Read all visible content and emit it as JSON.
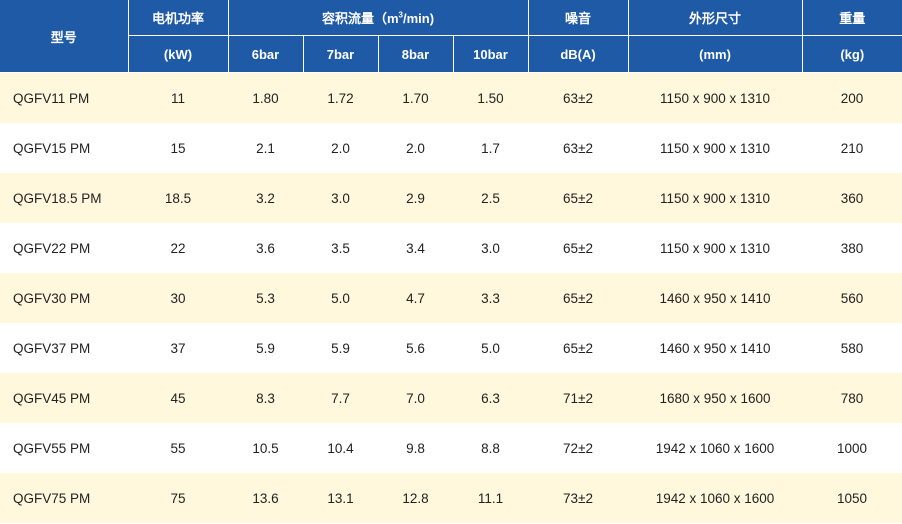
{
  "table": {
    "header": {
      "model": "型号",
      "power": "电机功率",
      "power_unit": "(kW)",
      "flow_prefix": "容积流量（m",
      "flow_sup": "3",
      "flow_suffix": "/min)",
      "pressures": [
        "6bar",
        "7bar",
        "8bar",
        "10bar"
      ],
      "noise": "噪音",
      "noise_unit": "dB(A)",
      "dimensions": "外形尺寸",
      "dimensions_unit": "(mm)",
      "weight": "重量",
      "weight_unit": "(kg)"
    },
    "rows": [
      {
        "model": "QGFV11 PM",
        "power": "11",
        "flow": [
          "1.80",
          "1.72",
          "1.70",
          "1.50"
        ],
        "noise": "63±2",
        "dimensions": "1150 x 900 x 1310",
        "weight": "200"
      },
      {
        "model": "QGFV15 PM",
        "power": "15",
        "flow": [
          "2.1",
          "2.0",
          "2.0",
          "1.7"
        ],
        "noise": "63±2",
        "dimensions": "1150 x 900 x 1310",
        "weight": "210"
      },
      {
        "model": "QGFV18.5 PM",
        "power": "18.5",
        "flow": [
          "3.2",
          "3.0",
          "2.9",
          "2.5"
        ],
        "noise": "65±2",
        "dimensions": "1150 x 900 x 1310",
        "weight": "360"
      },
      {
        "model": "QGFV22 PM",
        "power": "22",
        "flow": [
          "3.6",
          "3.5",
          "3.4",
          "3.0"
        ],
        "noise": "65±2",
        "dimensions": "1150 x 900 x 1310",
        "weight": "380"
      },
      {
        "model": "QGFV30 PM",
        "power": "30",
        "flow": [
          "5.3",
          "5.0",
          "4.7",
          "3.3"
        ],
        "noise": "65±2",
        "dimensions": "1460 x 950 x 1410",
        "weight": "560"
      },
      {
        "model": "QGFV37 PM",
        "power": "37",
        "flow": [
          "5.9",
          "5.9",
          "5.6",
          "5.0"
        ],
        "noise": "65±2",
        "dimensions": "1460 x 950 x 1410",
        "weight": "580"
      },
      {
        "model": "QGFV45 PM",
        "power": "45",
        "flow": [
          "8.3",
          "7.7",
          "7.0",
          "6.3"
        ],
        "noise": "71±2",
        "dimensions": "1680 x 950 x 1600",
        "weight": "780"
      },
      {
        "model": "QGFV55 PM",
        "power": "55",
        "flow": [
          "10.5",
          "10.4",
          "9.8",
          "8.8"
        ],
        "noise": "72±2",
        "dimensions": "1942 x 1060 x 1600",
        "weight": "1000"
      },
      {
        "model": "QGFV75 PM",
        "power": "75",
        "flow": [
          "13.6",
          "13.1",
          "12.8",
          "11.1"
        ],
        "noise": "73±2",
        "dimensions": "1942 x 1060 x 1600",
        "weight": "1050"
      }
    ]
  }
}
